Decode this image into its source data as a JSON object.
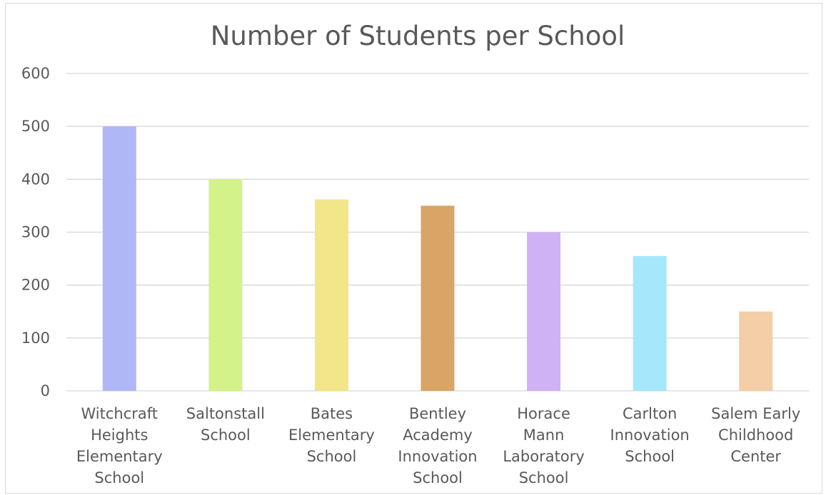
{
  "chart_data": {
    "type": "bar",
    "title": "Number of Students per School",
    "xlabel": "",
    "ylabel": "",
    "ylim": [
      0,
      600
    ],
    "yticks": [
      0,
      100,
      200,
      300,
      400,
      500,
      600
    ],
    "grid": true,
    "legend": "none",
    "categories": [
      [
        "Witchcraft",
        "Heights",
        "Elementary",
        "School"
      ],
      [
        "Saltonstall",
        "School"
      ],
      [
        "Bates",
        "Elementary",
        "School"
      ],
      [
        "Bentley",
        "Academy",
        "Innovation",
        "School"
      ],
      [
        "Horace",
        "Mann",
        "Laboratory",
        "School"
      ],
      [
        "Carlton",
        "Innovation",
        "School"
      ],
      [
        "Salem Early",
        "Childhood",
        "Center"
      ]
    ],
    "values": [
      500,
      400,
      362,
      350,
      300,
      255,
      150
    ],
    "colors": [
      "#b0b7f6",
      "#d3f28a",
      "#f1e68a",
      "#d9a566",
      "#ceb2f5",
      "#a6e7fc",
      "#f4cea6"
    ]
  }
}
